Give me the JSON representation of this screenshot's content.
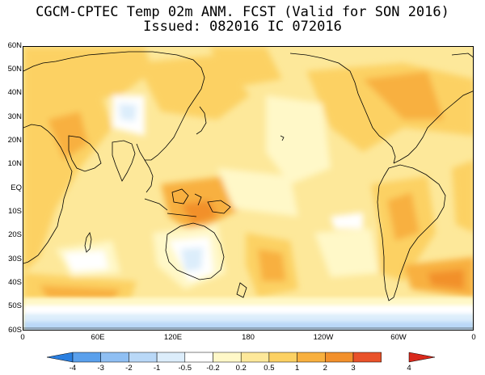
{
  "header": {
    "title": "CGCM-CPTEC Temp 02m ANM. FCST  (Valid for SON 2016)",
    "issued": "Issued:  082016 IC 072016"
  },
  "axes": {
    "lat_labels": [
      "60N",
      "50N",
      "40N",
      "30N",
      "20N",
      "10N",
      "EQ",
      "10S",
      "20S",
      "30S",
      "40S",
      "50S",
      "60S"
    ],
    "lon_labels": [
      "0",
      "60E",
      "120E",
      "180",
      "120W",
      "60W",
      "0"
    ]
  },
  "legend": {
    "labels": [
      "-4",
      "-3",
      "-2",
      "-1",
      "-0.5",
      "-0.2",
      "0.2",
      "0.5",
      "1",
      "2",
      "3",
      "4"
    ],
    "colors": [
      "#2a7fe0",
      "#5aa0ec",
      "#8fbff3",
      "#b9d8f7",
      "#dcedfb",
      "#ffffff",
      "#fff8c8",
      "#fde89a",
      "#fcd163",
      "#f8b03f",
      "#f2902c",
      "#e9522a",
      "#d9291c"
    ]
  },
  "palette": {
    "background": "#fde89a",
    "land_outline": "#000000"
  }
}
